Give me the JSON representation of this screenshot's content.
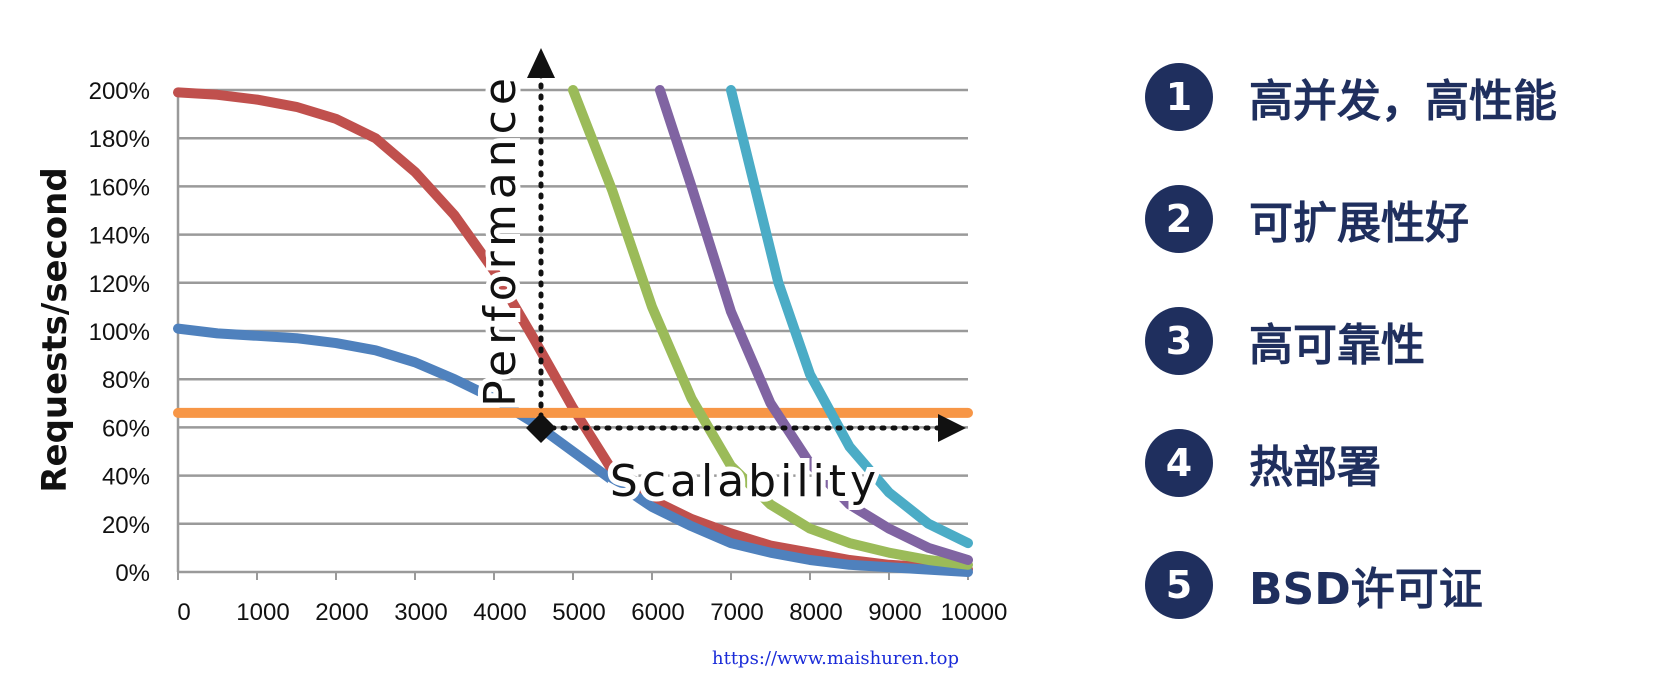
{
  "chart_data": {
    "type": "line",
    "ylabel": "Requests/second",
    "xlim": [
      0,
      10000
    ],
    "ylim": [
      0,
      200
    ],
    "xticks": [
      "0",
      "1000",
      "2000",
      "3000",
      "4000",
      "5000",
      "6000",
      "7000",
      "8000",
      "9000",
      "10000"
    ],
    "yticks": [
      "0%",
      "20%",
      "40%",
      "60%",
      "80%",
      "100%",
      "120%",
      "140%",
      "160%",
      "180%",
      "200%"
    ],
    "grid": true,
    "annotations": {
      "performance": "Performance",
      "scalability": "Scalability"
    },
    "series": [
      {
        "color": "#c0504d",
        "x": [
          0,
          500,
          1000,
          1500,
          2000,
          2500,
          3000,
          3500,
          4000,
          4500,
          5000,
          5500,
          6000,
          6500,
          7000,
          7500,
          8000,
          8500,
          9000,
          9500,
          10000
        ],
        "y": [
          199,
          198,
          196,
          193,
          188,
          180,
          166,
          148,
          125,
          97,
          68,
          42,
          30,
          22,
          16,
          11,
          8,
          5,
          3,
          2,
          1
        ]
      },
      {
        "color": "#4f81bd",
        "x": [
          0,
          500,
          1000,
          1500,
          2000,
          2500,
          3000,
          3500,
          4000,
          4500,
          5000,
          5500,
          6000,
          6500,
          7000,
          7500,
          8000,
          8500,
          9000,
          9500,
          10000
        ],
        "y": [
          101,
          99,
          98,
          97,
          95,
          92,
          87,
          80,
          72,
          62,
          50,
          38,
          27,
          19,
          12,
          8,
          5,
          3,
          2,
          1,
          0
        ]
      },
      {
        "color": "#f79646",
        "x": [
          0,
          10000
        ],
        "y": [
          66,
          66
        ]
      },
      {
        "color": "#9bbb59",
        "x": [
          5000,
          5500,
          6000,
          6500,
          7000,
          7500,
          8000,
          8500,
          9000,
          9500,
          10000
        ],
        "y": [
          200,
          158,
          110,
          72,
          44,
          28,
          18,
          12,
          8,
          5,
          3
        ]
      },
      {
        "color": "#8064a2",
        "x": [
          6100,
          6500,
          7000,
          7500,
          8000,
          8500,
          9000,
          9500,
          10000
        ],
        "y": [
          200,
          160,
          108,
          70,
          45,
          28,
          18,
          10,
          5
        ]
      },
      {
        "color": "#4bacc6",
        "x": [
          7000,
          7300,
          7600,
          8000,
          8500,
          9000,
          9500,
          10000
        ],
        "y": [
          200,
          160,
          120,
          82,
          52,
          33,
          20,
          12
        ]
      }
    ]
  },
  "features": [
    {
      "num": "1",
      "label": "高并发，高性能"
    },
    {
      "num": "2",
      "label": "可扩展性好"
    },
    {
      "num": "3",
      "label": "高可靠性"
    },
    {
      "num": "4",
      "label": "热部署"
    },
    {
      "num": "5",
      "label": "BSD许可证"
    }
  ],
  "watermark": "https://www.maishuren.top"
}
